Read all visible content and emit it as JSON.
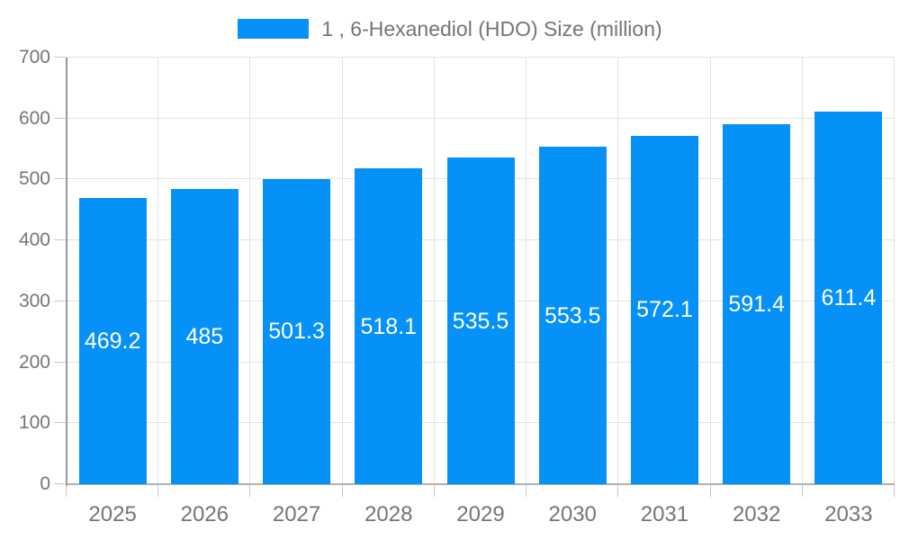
{
  "legend": {
    "label": "1 , 6-Hexanediol (HDO) Size (million)"
  },
  "colors": {
    "bar": "#0691f9",
    "bar_label": "#ffffff",
    "axis_label": "#757575",
    "gridline": "#e3e3e3",
    "tick": "#c9c9c9",
    "y_axis_line": "#999999",
    "x_axis_line": "#b0b0b0",
    "background": "#ffffff"
  },
  "chart_data": {
    "type": "bar",
    "title": "",
    "xlabel": "",
    "ylabel": "",
    "categories": [
      "2025",
      "2026",
      "2027",
      "2028",
      "2029",
      "2030",
      "2031",
      "2032",
      "2033"
    ],
    "series": [
      {
        "name": "1 , 6-Hexanediol (HDO) Size (million)",
        "values": [
          469.2,
          485,
          501.3,
          518.1,
          535.5,
          553.5,
          572.1,
          591.4,
          611.4
        ]
      }
    ],
    "value_labels": [
      "469.2",
      "485",
      "501.3",
      "518.1",
      "535.5",
      "553.5",
      "572.1",
      "591.4",
      "611.4"
    ],
    "ylim": [
      0,
      700
    ],
    "ytick_step": 100,
    "ytick_labels": [
      "0",
      "100",
      "200",
      "300",
      "400",
      "500",
      "600",
      "700"
    ],
    "grid": true,
    "legend_position": "top",
    "bar_value_label_position": "center-of-bar"
  }
}
